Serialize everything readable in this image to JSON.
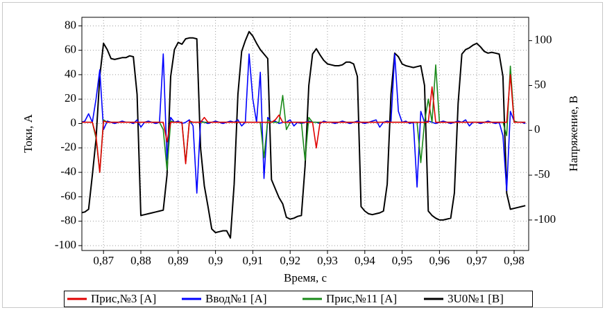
{
  "chart_data": {
    "type": "line",
    "x_label": "Время, с",
    "y_label": "Токи, А",
    "y2_label": "Напряжение, В",
    "xlim": [
      0.8642,
      0.9839
    ],
    "ylim": [
      -104,
      87
    ],
    "y2lim": [
      -134,
      126
    ],
    "xticks": [
      {
        "value": 0.87,
        "label": "0,87"
      },
      {
        "value": 0.88,
        "label": "0,88"
      },
      {
        "value": 0.89,
        "label": "0,89"
      },
      {
        "value": 0.9,
        "label": "0,9"
      },
      {
        "value": 0.91,
        "label": "0,91"
      },
      {
        "value": 0.92,
        "label": "0,92"
      },
      {
        "value": 0.93,
        "label": "0,93"
      },
      {
        "value": 0.94,
        "label": "0,94"
      },
      {
        "value": 0.95,
        "label": "0,95"
      },
      {
        "value": 0.96,
        "label": "0,96"
      },
      {
        "value": 0.97,
        "label": "0,97"
      },
      {
        "value": 0.98,
        "label": "0,98"
      }
    ],
    "yticks": [
      -100,
      -80,
      -60,
      -40,
      -20,
      0,
      20,
      40,
      60,
      80
    ],
    "y2ticks": [
      -100,
      -50,
      0,
      50,
      100
    ],
    "grid": true,
    "legend": "bottom",
    "x": [
      0.864,
      0.865,
      0.866,
      0.867,
      0.868,
      0.869,
      0.87,
      0.871,
      0.872,
      0.873,
      0.874,
      0.875,
      0.876,
      0.877,
      0.878,
      0.879,
      0.88,
      0.881,
      0.882,
      0.883,
      0.884,
      0.885,
      0.886,
      0.887,
      0.888,
      0.889,
      0.89,
      0.891,
      0.892,
      0.893,
      0.894,
      0.895,
      0.896,
      0.897,
      0.898,
      0.899,
      0.9,
      0.901,
      0.902,
      0.903,
      0.904,
      0.905,
      0.906,
      0.907,
      0.908,
      0.909,
      0.91,
      0.911,
      0.912,
      0.913,
      0.914,
      0.915,
      0.916,
      0.917,
      0.918,
      0.919,
      0.92,
      0.921,
      0.922,
      0.923,
      0.924,
      0.925,
      0.926,
      0.927,
      0.928,
      0.929,
      0.93,
      0.931,
      0.932,
      0.933,
      0.934,
      0.935,
      0.936,
      0.937,
      0.938,
      0.939,
      0.94,
      0.941,
      0.942,
      0.943,
      0.944,
      0.945,
      0.946,
      0.947,
      0.948,
      0.949,
      0.95,
      0.951,
      0.952,
      0.953,
      0.954,
      0.955,
      0.956,
      0.957,
      0.958,
      0.959,
      0.96,
      0.961,
      0.962,
      0.963,
      0.964,
      0.965,
      0.966,
      0.967,
      0.968,
      0.969,
      0.97,
      0.971,
      0.972,
      0.973,
      0.974,
      0.975,
      0.976,
      0.977,
      0.978,
      0.979,
      0.98,
      0.981,
      0.982,
      0.983
    ],
    "series": [
      {
        "name": "3U0№1 [B]",
        "color": "#000000",
        "axis": "y2",
        "values": [
          -92,
          -91,
          -88,
          -50,
          -10,
          60,
          97,
          90,
          80,
          79,
          80,
          81,
          81,
          83,
          82,
          40,
          -95,
          -94,
          -93,
          -92,
          -91,
          -90,
          -89,
          -50,
          60,
          90,
          98,
          96,
          102,
          103,
          103,
          102,
          -20,
          -62,
          -85,
          -110,
          -114,
          -113,
          -112,
          -112,
          -120,
          -60,
          40,
          88,
          100,
          110,
          105,
          97,
          90,
          85,
          80,
          -55,
          -65,
          -75,
          -82,
          -97,
          -99,
          -98,
          -96,
          -95,
          -40,
          50,
          85,
          91,
          84,
          78,
          74,
          73,
          72,
          72,
          73,
          76,
          76,
          74,
          60,
          -85,
          -90,
          -93,
          -94,
          -93,
          -92,
          -90,
          -60,
          40,
          86,
          82,
          74,
          72,
          71,
          70,
          71,
          72,
          50,
          -90,
          -95,
          -98,
          -100,
          -100,
          -99,
          -98,
          -70,
          30,
          85,
          90,
          92,
          95,
          97,
          93,
          88,
          86,
          87,
          86,
          85,
          60,
          -70,
          -88,
          -87,
          -86,
          -85,
          -84
        ]
      },
      {
        "name": "Ввод№1 [A]",
        "color": "#0000ff",
        "values": [
          1,
          2,
          8,
          1,
          20,
          44,
          -5,
          2,
          1,
          0,
          1,
          2,
          1,
          1,
          0,
          3,
          -3,
          1,
          2,
          1,
          0,
          1,
          57,
          -30,
          5,
          1,
          2,
          0,
          1,
          3,
          -2,
          -57,
          2,
          1,
          0,
          1,
          2,
          1,
          0,
          1,
          2,
          1,
          3,
          -2,
          1,
          57,
          20,
          1,
          42,
          -45,
          5,
          1,
          2,
          0,
          1,
          1,
          3,
          -2,
          1,
          0,
          1,
          2,
          1,
          1,
          0,
          2,
          1,
          1,
          0,
          1,
          2,
          1,
          0,
          1,
          2,
          1,
          0,
          1,
          2,
          3,
          -3,
          1,
          2,
          1,
          57,
          10,
          1,
          2,
          0,
          1,
          -52,
          10,
          1,
          2,
          1,
          0,
          1,
          2,
          1,
          0,
          1,
          2,
          1,
          3,
          -2,
          1,
          1,
          0,
          1,
          2,
          1,
          0,
          1,
          -10,
          -55,
          10,
          2,
          1,
          1,
          0
        ]
      },
      {
        "name": "Прис,№11 [A]",
        "color": "#1a8a1a",
        "values": [
          1,
          1,
          1,
          1,
          -12,
          -40,
          3,
          1,
          1,
          1,
          1,
          1,
          1,
          1,
          1,
          1,
          1,
          1,
          1,
          1,
          1,
          1,
          -5,
          -38,
          2,
          1,
          1,
          1,
          -32,
          1,
          1,
          1,
          1,
          1,
          1,
          1,
          1,
          1,
          1,
          1,
          1,
          1,
          1,
          1,
          1,
          1,
          1,
          1,
          1,
          -28,
          3,
          1,
          1,
          1,
          23,
          -5,
          1,
          1,
          1,
          1,
          -30,
          5,
          1,
          1,
          1,
          1,
          1,
          1,
          1,
          1,
          1,
          1,
          1,
          1,
          1,
          1,
          1,
          1,
          1,
          1,
          1,
          1,
          1,
          1,
          1,
          1,
          1,
          1,
          1,
          1,
          1,
          -32,
          1,
          20,
          1,
          48,
          1,
          1,
          1,
          1,
          1,
          1,
          1,
          1,
          1,
          1,
          1,
          1,
          1,
          1,
          1,
          1,
          1,
          1,
          -10,
          47,
          2,
          1,
          1,
          1
        ]
      },
      {
        "name": "Прис,№3 [A]",
        "color": "#e00000",
        "values": [
          1,
          1,
          1,
          1,
          -10,
          -40,
          2,
          1,
          1,
          1,
          1,
          1,
          1,
          1,
          1,
          1,
          1,
          1,
          1,
          1,
          1,
          1,
          1,
          -15,
          1,
          1,
          1,
          1,
          -33,
          2,
          1,
          1,
          1,
          5,
          1,
          1,
          1,
          1,
          1,
          1,
          1,
          1,
          1,
          1,
          1,
          1,
          1,
          1,
          1,
          1,
          1,
          1,
          3,
          7,
          1,
          1,
          1,
          1,
          1,
          1,
          1,
          1,
          1,
          -20,
          1,
          1,
          1,
          1,
          1,
          1,
          1,
          1,
          1,
          1,
          1,
          1,
          1,
          1,
          1,
          1,
          1,
          1,
          1,
          1,
          1,
          1,
          1,
          1,
          1,
          1,
          1,
          1,
          1,
          1,
          30,
          1,
          1,
          1,
          1,
          1,
          1,
          1,
          1,
          1,
          1,
          1,
          1,
          1,
          1,
          1,
          1,
          1,
          1,
          1,
          1,
          40,
          1,
          1,
          1,
          1
        ]
      }
    ]
  }
}
